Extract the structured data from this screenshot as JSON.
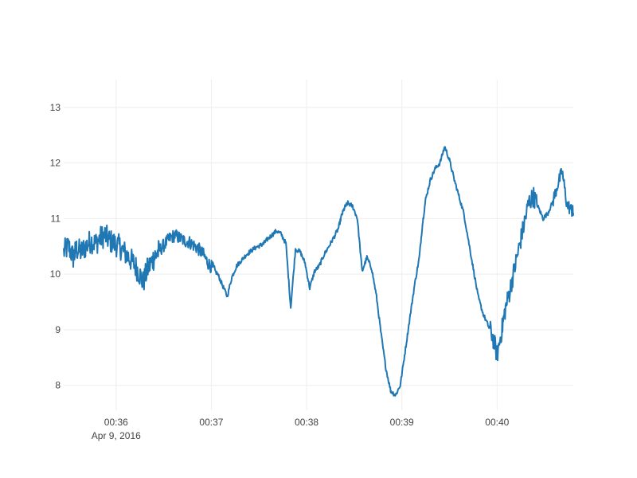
{
  "chart_data": {
    "type": "line",
    "title": "",
    "xlabel": "",
    "ylabel": "",
    "x_axis_kind": "time",
    "date_label": "Apr 9, 2016",
    "xlim": [
      "00:35:27",
      "00:40:48"
    ],
    "ylim": [
      7.55,
      13.5
    ],
    "x_ticks": [
      "00:36",
      "00:37",
      "00:38",
      "00:39",
      "00:40"
    ],
    "y_ticks": [
      8,
      9,
      10,
      11,
      12,
      13
    ],
    "grid": true,
    "legend": "none",
    "series": [
      {
        "color": "#1f77b4",
        "x": [
          "00:35:27",
          "00:35:30",
          "00:35:33",
          "00:35:35",
          "00:35:38",
          "00:35:41",
          "00:35:44",
          "00:35:47",
          "00:35:50",
          "00:35:53",
          "00:35:56",
          "00:35:59",
          "00:36:02",
          "00:36:05",
          "00:36:08",
          "00:36:11",
          "00:36:14",
          "00:36:17",
          "00:36:20",
          "00:36:23",
          "00:36:25",
          "00:36:28",
          "00:36:31",
          "00:36:34",
          "00:36:37",
          "00:36:40",
          "00:36:43",
          "00:36:46",
          "00:36:49",
          "00:36:52",
          "00:36:55",
          "00:36:58",
          "00:37:01",
          "00:37:04",
          "00:37:07",
          "00:37:10",
          "00:37:13",
          "00:37:16",
          "00:37:19",
          "00:37:22",
          "00:37:25",
          "00:37:28",
          "00:37:31",
          "00:37:33",
          "00:37:35",
          "00:37:38",
          "00:37:41",
          "00:37:44",
          "00:37:47",
          "00:37:50",
          "00:37:53",
          "00:37:56",
          "00:37:59",
          "00:38:02",
          "00:38:05",
          "00:38:08",
          "00:38:11",
          "00:38:14",
          "00:38:17",
          "00:38:20",
          "00:38:22",
          "00:38:24",
          "00:38:26",
          "00:38:29",
          "00:38:32",
          "00:38:35",
          "00:38:38",
          "00:38:41",
          "00:38:44",
          "00:38:47",
          "00:38:50",
          "00:38:53",
          "00:38:56",
          "00:38:59",
          "00:39:02",
          "00:39:05",
          "00:39:08",
          "00:39:11",
          "00:39:13",
          "00:39:15",
          "00:39:18",
          "00:39:21",
          "00:39:24",
          "00:39:27",
          "00:39:30",
          "00:39:33",
          "00:39:36",
          "00:39:39",
          "00:39:42",
          "00:39:45",
          "00:39:48",
          "00:39:51",
          "00:39:54",
          "00:39:57",
          "00:40:00",
          "00:40:03",
          "00:40:05",
          "00:40:08",
          "00:40:11",
          "00:40:14",
          "00:40:17",
          "00:40:20",
          "00:40:23",
          "00:40:26",
          "00:40:29",
          "00:40:32",
          "00:40:35",
          "00:40:38",
          "00:40:41",
          "00:40:44",
          "00:40:47",
          "00:40:48"
        ],
        "y": [
          10.4,
          10.5,
          10.3,
          10.45,
          10.4,
          10.5,
          10.6,
          10.55,
          10.65,
          10.7,
          10.6,
          10.55,
          10.5,
          10.4,
          10.3,
          10.2,
          10.05,
          9.85,
          10.1,
          10.25,
          10.35,
          10.45,
          10.55,
          10.65,
          10.7,
          10.65,
          10.6,
          10.58,
          10.52,
          10.45,
          10.35,
          10.2,
          10.1,
          10.0,
          9.8,
          9.6,
          9.95,
          10.15,
          10.25,
          10.35,
          10.42,
          10.48,
          10.52,
          10.55,
          10.62,
          10.7,
          10.78,
          10.72,
          10.55,
          9.4,
          10.45,
          10.4,
          10.2,
          9.75,
          10.05,
          10.15,
          10.35,
          10.5,
          10.65,
          10.82,
          11.05,
          11.2,
          11.28,
          11.22,
          11.0,
          10.05,
          10.3,
          10.1,
          9.6,
          8.9,
          8.3,
          7.9,
          7.82,
          8.0,
          8.6,
          9.2,
          9.8,
          10.3,
          10.9,
          11.35,
          11.7,
          11.9,
          12.0,
          12.3,
          12.05,
          11.7,
          11.4,
          11.1,
          10.6,
          10.1,
          9.6,
          9.3,
          9.1,
          8.9,
          8.55,
          9.0,
          9.35,
          9.7,
          10.1,
          10.5,
          10.9,
          11.3,
          11.4,
          11.2,
          11.0,
          11.1,
          11.3,
          11.6,
          11.85,
          11.25,
          11.15,
          11.1
        ]
      }
    ]
  }
}
